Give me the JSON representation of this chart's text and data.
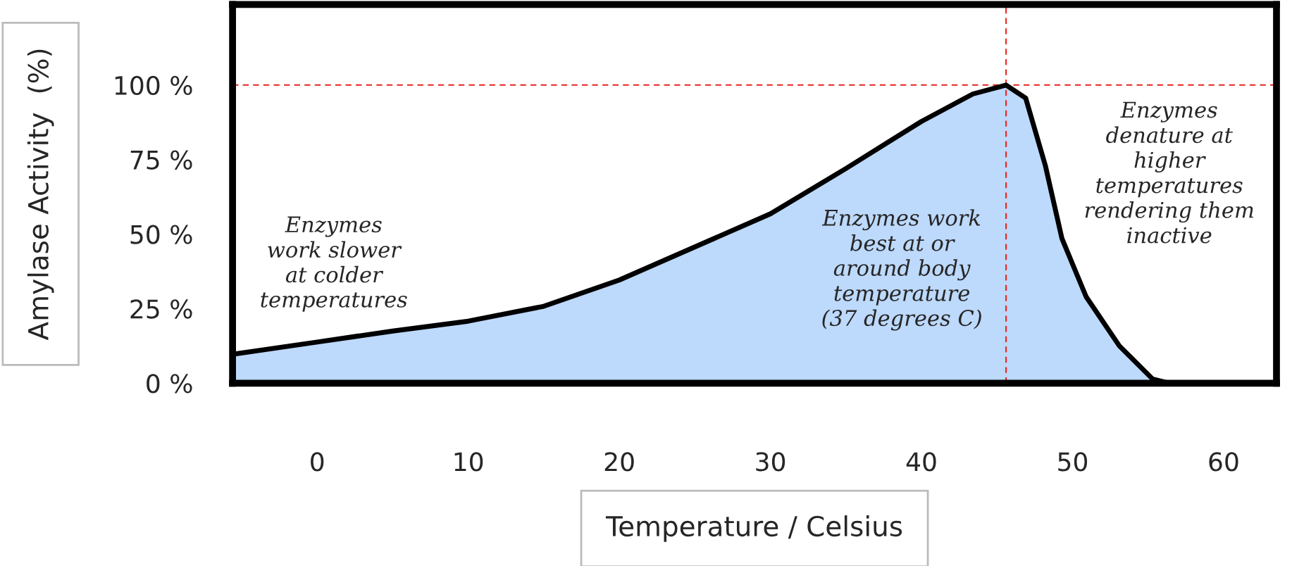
{
  "chart_data": {
    "type": "area",
    "xlabel": "Temperature / Celsius",
    "ylabel": "Amylase Activity  (%)",
    "x": [
      -5.6,
      0,
      5,
      10,
      15,
      20,
      25,
      30,
      35,
      40,
      43.4,
      45.6,
      46.9,
      48.2,
      49.3,
      50.9,
      53.1,
      55.3,
      56.4,
      63.5
    ],
    "series": [
      {
        "color": "#bdd9fb",
        "values": [
          9.7,
          13.8,
          17.5,
          20.8,
          25.8,
          34.6,
          45.7,
          56.8,
          72,
          87.8,
          97,
          100,
          95.6,
          73,
          48.5,
          29,
          12.5,
          1.4,
          0,
          0
        ]
      }
    ],
    "xlim": [
      -5.6,
      63.5
    ],
    "xticks": [
      0,
      10,
      20,
      30,
      40,
      50,
      60
    ],
    "ylim": [
      0,
      127
    ],
    "yticks": [
      {
        "value": 0,
        "label": "0 %"
      },
      {
        "value": 25,
        "label": "25 %"
      },
      {
        "value": 50,
        "label": "50 %"
      },
      {
        "value": 75,
        "label": "75 %"
      },
      {
        "value": 100,
        "label": "100 %"
      }
    ],
    "ref_lines": [
      {
        "axis": "y",
        "value": 100,
        "color": "#e8231d",
        "line_style": "dashed"
      },
      {
        "axis": "x",
        "value": 45.6,
        "color": "#e8231d",
        "line_style": "dashed"
      }
    ],
    "annotations": [
      "Enzymes\nwork slower\nat colder\ntemperatures",
      "Enzymes work\nbest at or\naround body\ntemperature\n(37 degrees C)",
      "Enzymes\ndenature at\nhigher\ntemperatures\nrendering them\ninactive"
    ],
    "grid": false,
    "legend": false
  }
}
